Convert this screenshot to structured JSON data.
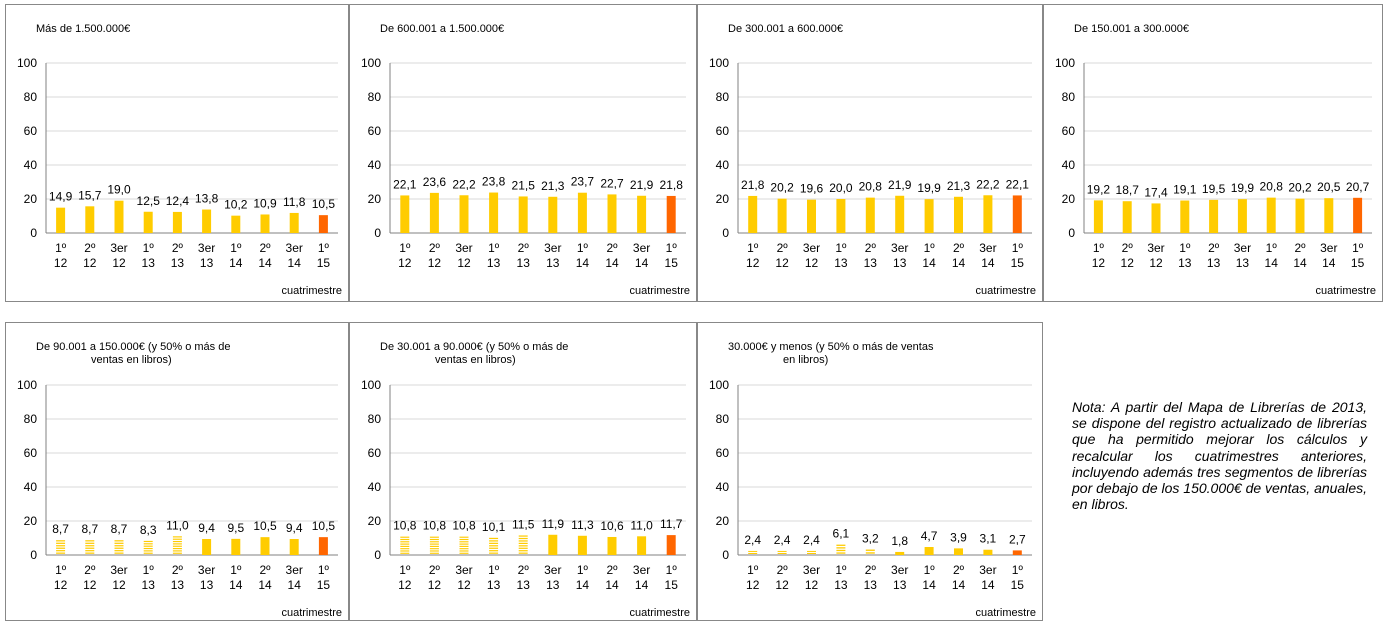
{
  "chart_data": [
    {
      "type": "bar",
      "title": "Más de 1.500.000€",
      "xlabel": "cuatrimestre",
      "ylim": [
        0,
        100
      ],
      "yticks": [
        "0",
        "20",
        "40",
        "60",
        "80",
        "100"
      ],
      "categories": [
        [
          "1º",
          "12"
        ],
        [
          "2º",
          "12"
        ],
        [
          "3er",
          "12"
        ],
        [
          "1º",
          "13"
        ],
        [
          "2º",
          "13"
        ],
        [
          "3er",
          "13"
        ],
        [
          "1º",
          "14"
        ],
        [
          "2º",
          "14"
        ],
        [
          "3er",
          "14"
        ],
        [
          "1º",
          "15"
        ]
      ],
      "labels": [
        "14,9",
        "15,7",
        "19,0",
        "12,5",
        "12,4",
        "13,8",
        "10,2",
        "10,9",
        "11,8",
        "10,5"
      ],
      "values": [
        14.9,
        15.7,
        19.0,
        12.5,
        12.4,
        13.8,
        10.2,
        10.9,
        11.8,
        10.5
      ]
    },
    {
      "type": "bar",
      "title": "De 600.001 a 1.500.000€",
      "xlabel": "cuatrimestre",
      "ylim": [
        0,
        100
      ],
      "yticks": [
        "0",
        "20",
        "40",
        "60",
        "80",
        "100"
      ],
      "categories": [
        [
          "1º",
          "12"
        ],
        [
          "2º",
          "12"
        ],
        [
          "3er",
          "12"
        ],
        [
          "1º",
          "13"
        ],
        [
          "2º",
          "13"
        ],
        [
          "3er",
          "13"
        ],
        [
          "1º",
          "14"
        ],
        [
          "2º",
          "14"
        ],
        [
          "3er",
          "14"
        ],
        [
          "1º",
          "15"
        ]
      ],
      "labels": [
        "22,1",
        "23,6",
        "22,2",
        "23,8",
        "21,5",
        "21,3",
        "23,7",
        "22,7",
        "21,9",
        "21,8"
      ],
      "values": [
        22.1,
        23.6,
        22.2,
        23.8,
        21.5,
        21.3,
        23.7,
        22.7,
        21.9,
        21.8
      ]
    },
    {
      "type": "bar",
      "title": "De 300.001 a 600.000€",
      "xlabel": "cuatrimestre",
      "ylim": [
        0,
        100
      ],
      "yticks": [
        "0",
        "20",
        "40",
        "60",
        "80",
        "100"
      ],
      "categories": [
        [
          "1º",
          "12"
        ],
        [
          "2º",
          "12"
        ],
        [
          "3er",
          "12"
        ],
        [
          "1º",
          "13"
        ],
        [
          "2º",
          "13"
        ],
        [
          "3er",
          "13"
        ],
        [
          "1º",
          "14"
        ],
        [
          "2º",
          "14"
        ],
        [
          "3er",
          "14"
        ],
        [
          "1º",
          "15"
        ]
      ],
      "labels": [
        "21,8",
        "20,2",
        "19,6",
        "20,0",
        "20,8",
        "21,9",
        "19,9",
        "21,3",
        "22,2",
        "22,1"
      ],
      "values": [
        21.8,
        20.2,
        19.6,
        20.0,
        20.8,
        21.9,
        19.9,
        21.3,
        22.2,
        22.1
      ]
    },
    {
      "type": "bar",
      "title": "De 150.001 a 300.000€",
      "xlabel": "cuatrimestre",
      "ylim": [
        0,
        100
      ],
      "yticks": [
        "0",
        "20",
        "40",
        "60",
        "80",
        "100"
      ],
      "categories": [
        [
          "1º",
          "12"
        ],
        [
          "2º",
          "12"
        ],
        [
          "3er",
          "12"
        ],
        [
          "1º",
          "13"
        ],
        [
          "2º",
          "13"
        ],
        [
          "3er",
          "13"
        ],
        [
          "1º",
          "14"
        ],
        [
          "2º",
          "14"
        ],
        [
          "3er",
          "14"
        ],
        [
          "1º",
          "15"
        ]
      ],
      "labels": [
        "19,2",
        "18,7",
        "17,4",
        "19,1",
        "19,5",
        "19,9",
        "20,8",
        "20,2",
        "20,5",
        "20,7"
      ],
      "values": [
        19.2,
        18.7,
        17.4,
        19.1,
        19.5,
        19.9,
        20.8,
        20.2,
        20.5,
        20.7
      ]
    },
    {
      "type": "bar",
      "title": "De 90.001 a 150.000€ (y 50% o más de",
      "title2": "ventas en libros)",
      "xlabel": "cuatrimestre",
      "ylim": [
        0,
        100
      ],
      "yticks": [
        "0",
        "20",
        "40",
        "60",
        "80",
        "100"
      ],
      "categories": [
        [
          "1º",
          "12"
        ],
        [
          "2º",
          "12"
        ],
        [
          "3er",
          "12"
        ],
        [
          "1º",
          "13"
        ],
        [
          "2º",
          "13"
        ],
        [
          "3er",
          "13"
        ],
        [
          "1º",
          "14"
        ],
        [
          "2º",
          "14"
        ],
        [
          "3er",
          "14"
        ],
        [
          "1º",
          "15"
        ]
      ],
      "labels": [
        "8,7",
        "8,7",
        "8,7",
        "8,3",
        "11,0",
        "9,4",
        "9,5",
        "10,5",
        "9,4",
        "10,5"
      ],
      "values": [
        8.7,
        8.7,
        8.7,
        8.3,
        11.0,
        9.4,
        9.5,
        10.5,
        9.4,
        10.5
      ],
      "hatched": [
        true,
        true,
        true,
        true,
        true,
        false,
        false,
        false,
        false,
        false
      ]
    },
    {
      "type": "bar",
      "title": "De 30.001 a 90.000€ (y 50% o más de",
      "title2": "ventas en libros)",
      "xlabel": "cuatrimestre",
      "ylim": [
        0,
        100
      ],
      "yticks": [
        "0",
        "20",
        "40",
        "60",
        "80",
        "100"
      ],
      "categories": [
        [
          "1º",
          "12"
        ],
        [
          "2º",
          "12"
        ],
        [
          "3er",
          "12"
        ],
        [
          "1º",
          "13"
        ],
        [
          "2º",
          "13"
        ],
        [
          "3er",
          "13"
        ],
        [
          "1º",
          "14"
        ],
        [
          "2º",
          "14"
        ],
        [
          "3er",
          "14"
        ],
        [
          "1º",
          "15"
        ]
      ],
      "labels": [
        "10,8",
        "10,8",
        "10,8",
        "10,1",
        "11,5",
        "11,9",
        "11,3",
        "10,6",
        "11,0",
        "11,7"
      ],
      "values": [
        10.8,
        10.8,
        10.8,
        10.1,
        11.5,
        11.9,
        11.3,
        10.6,
        11.0,
        11.7
      ],
      "hatched": [
        true,
        true,
        true,
        true,
        true,
        false,
        false,
        false,
        false,
        false
      ]
    },
    {
      "type": "bar",
      "title": "30.000€ y menos (y 50% o más de ventas",
      "title2": "en libros)",
      "xlabel": "cuatrimestre",
      "ylim": [
        0,
        100
      ],
      "yticks": [
        "0",
        "20",
        "40",
        "60",
        "80",
        "100"
      ],
      "categories": [
        [
          "1º",
          "12"
        ],
        [
          "2º",
          "12"
        ],
        [
          "3er",
          "12"
        ],
        [
          "1º",
          "13"
        ],
        [
          "2º",
          "13"
        ],
        [
          "3er",
          "13"
        ],
        [
          "1º",
          "14"
        ],
        [
          "2º",
          "14"
        ],
        [
          "3er",
          "14"
        ],
        [
          "1º",
          "15"
        ]
      ],
      "labels": [
        "2,4",
        "2,4",
        "2,4",
        "6,1",
        "3,2",
        "1,8",
        "4,7",
        "3,9",
        "3,1",
        "2,7"
      ],
      "values": [
        2.4,
        2.4,
        2.4,
        6.1,
        3.2,
        1.8,
        4.7,
        3.9,
        3.1,
        2.7
      ],
      "hatched": [
        true,
        true,
        true,
        true,
        true,
        false,
        false,
        false,
        false,
        false
      ]
    }
  ],
  "colors": {
    "bar": "#FFCC00",
    "last_bar": "#FF6600",
    "grid": "#D9D9D9",
    "axis": "#808080"
  },
  "note": "Nota: A partir del Mapa de Librerías de 2013, se dispone del registro actualizado de librerías que ha permitido mejorar los cálculos y recalcular los cuatrimestres anteriores, incluyendo además tres segmentos de librerías por debajo de los 150.000€ de ventas, anuales, en libros."
}
